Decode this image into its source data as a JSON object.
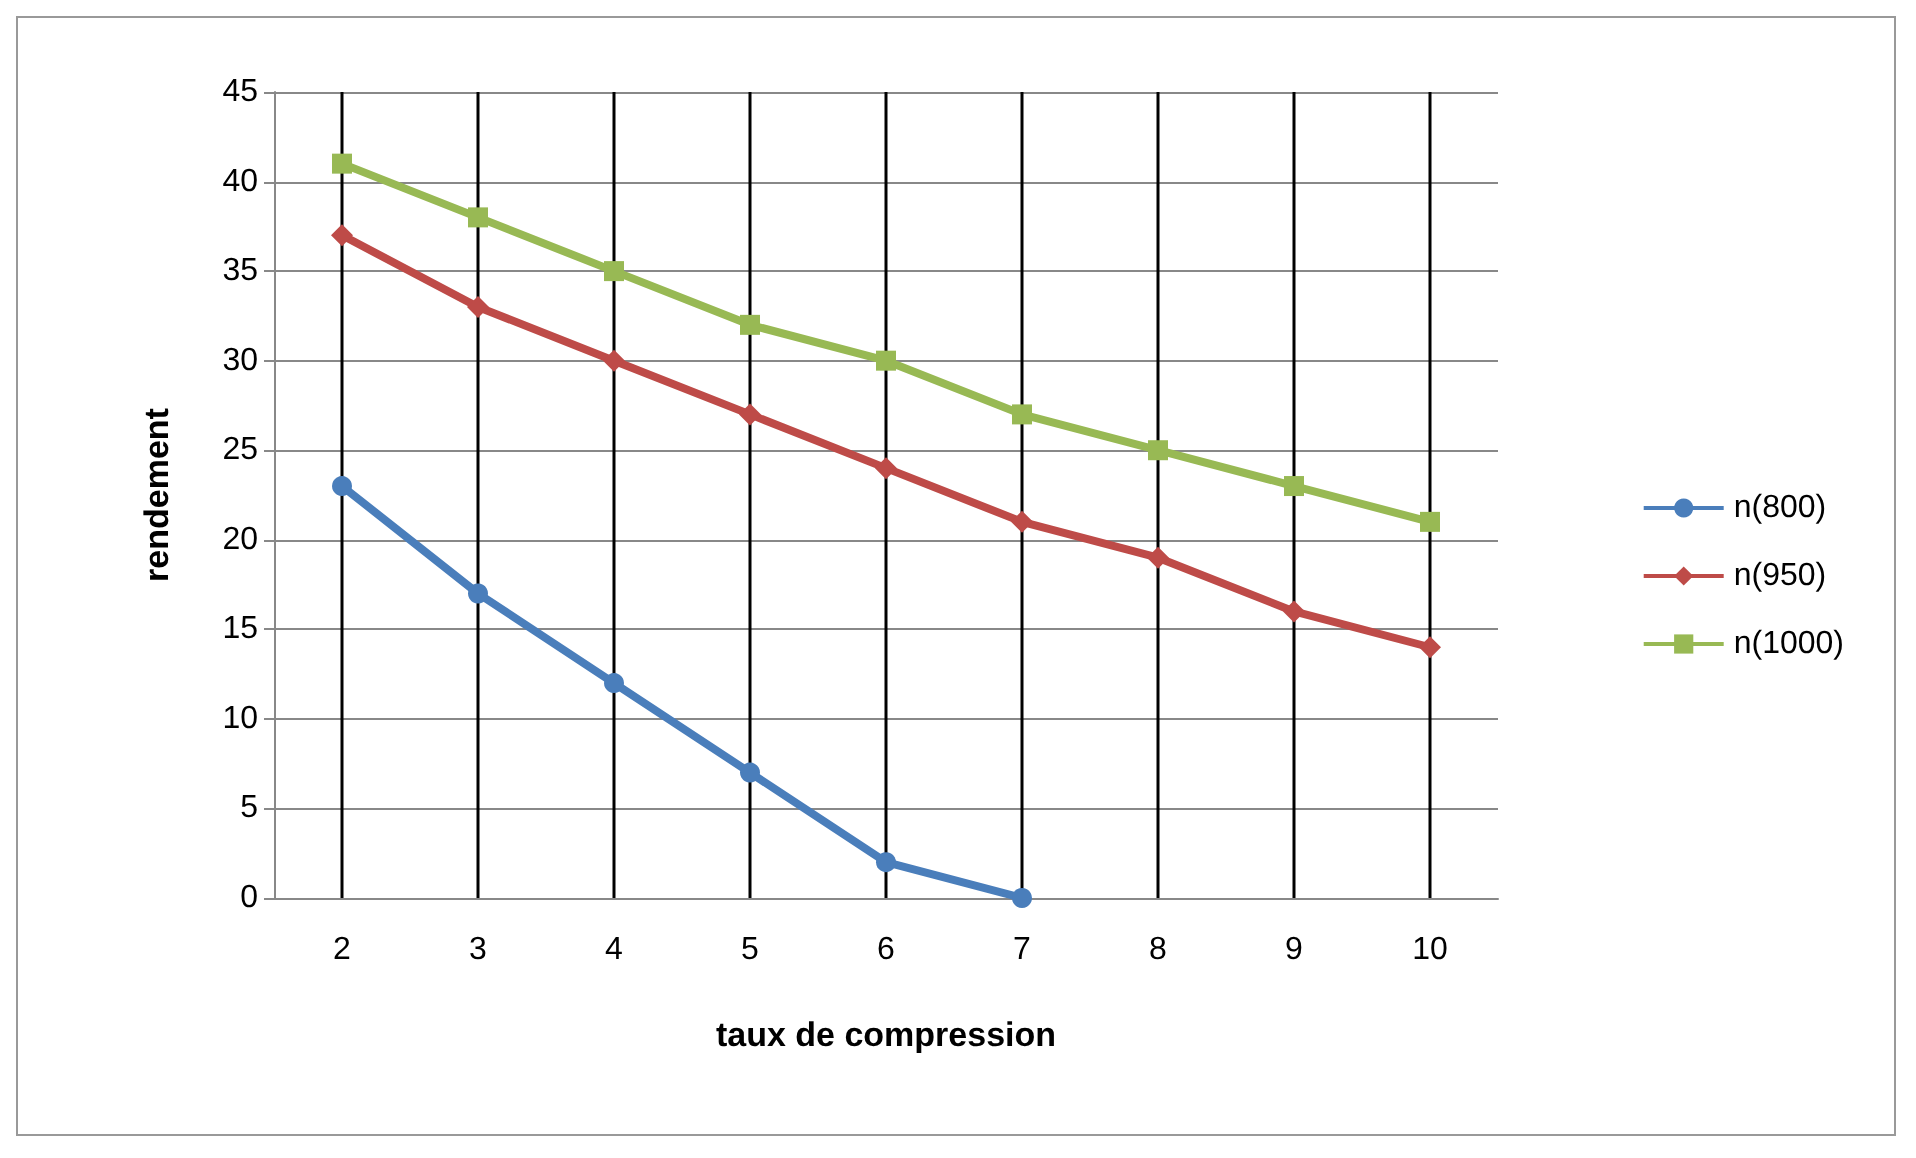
{
  "chart_data": {
    "type": "line",
    "xlabel": "taux de compression",
    "ylabel": "rendement",
    "categories": [
      "2",
      "3",
      "4",
      "5",
      "6",
      "7",
      "8",
      "9",
      "10"
    ],
    "ylim": [
      0,
      45
    ],
    "yticks": [
      0,
      5,
      10,
      15,
      20,
      25,
      30,
      35,
      40,
      45
    ],
    "grid": true,
    "legend": "right",
    "series": [
      {
        "name": "n(800)",
        "color": "#4a7ebb",
        "marker": "circle",
        "values": [
          23,
          17,
          12,
          7,
          2,
          0,
          null,
          null,
          null
        ]
      },
      {
        "name": "n(950)",
        "color": "#be4b48",
        "marker": "diamond",
        "values": [
          37,
          33,
          30,
          27,
          24,
          21,
          19,
          16,
          14
        ]
      },
      {
        "name": "n(1000)",
        "color": "#98b954",
        "marker": "square",
        "values": [
          41,
          38,
          35,
          32,
          30,
          27,
          25,
          23,
          21
        ]
      }
    ]
  }
}
